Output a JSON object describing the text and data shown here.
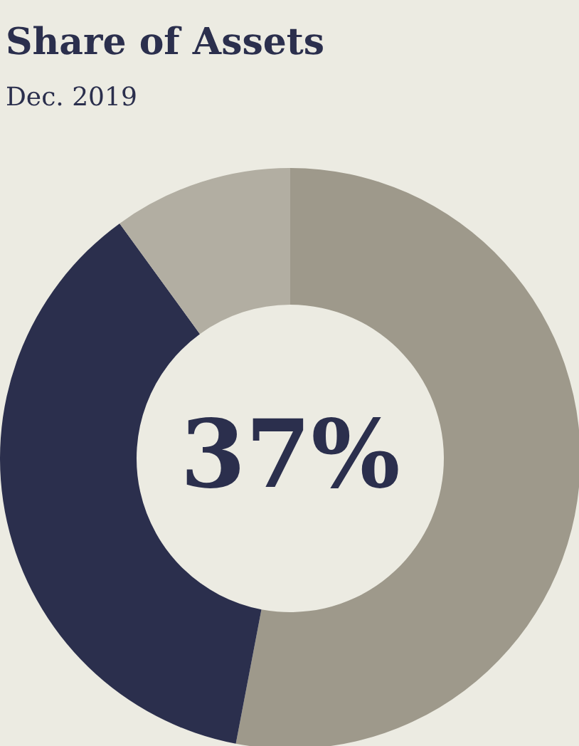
{
  "chart_data": {
    "type": "donut",
    "title": "Share of Assets",
    "subtitle": "Dec. 2019",
    "categories": [
      null,
      null,
      null
    ],
    "values": [
      53,
      37,
      10
    ],
    "colors": [
      "#9e998b",
      "#2b2f4d",
      "#b2aea2"
    ],
    "annotations": [
      "37%"
    ]
  }
}
